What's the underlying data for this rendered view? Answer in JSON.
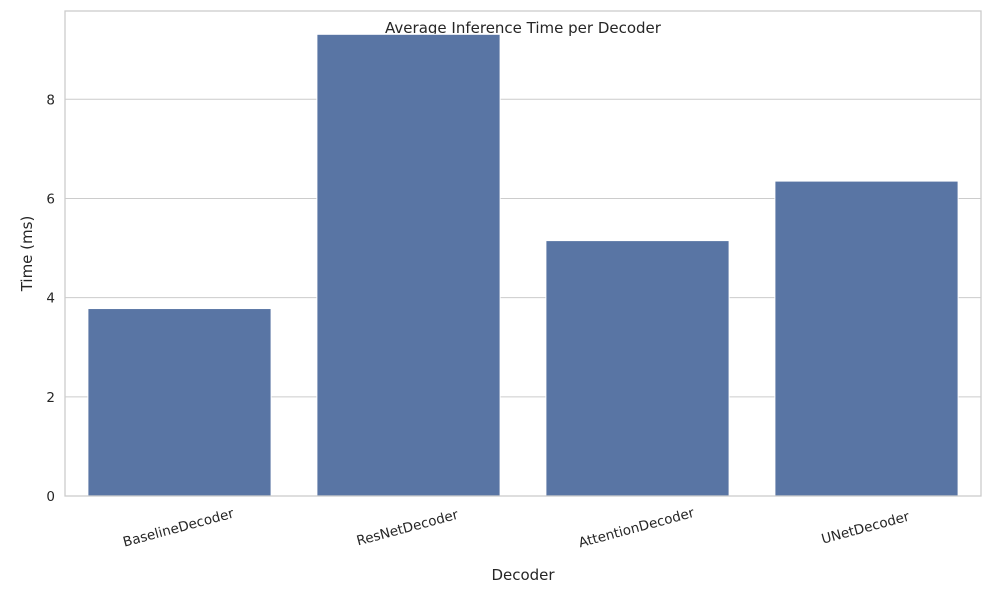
{
  "chart_data": {
    "type": "bar",
    "title": "Average Inference Time per Decoder",
    "xlabel": "Decoder",
    "ylabel": "Time (ms)",
    "categories": [
      "BaselineDecoder",
      "ResNetDecoder",
      "AttentionDecoder",
      "UNetDecoder"
    ],
    "values": [
      3.78,
      9.31,
      5.15,
      6.35
    ],
    "ylim": [
      0,
      9.78
    ],
    "yticks": [
      0,
      2,
      4,
      6,
      8
    ],
    "grid": true,
    "bar_color": "#5975a4"
  }
}
